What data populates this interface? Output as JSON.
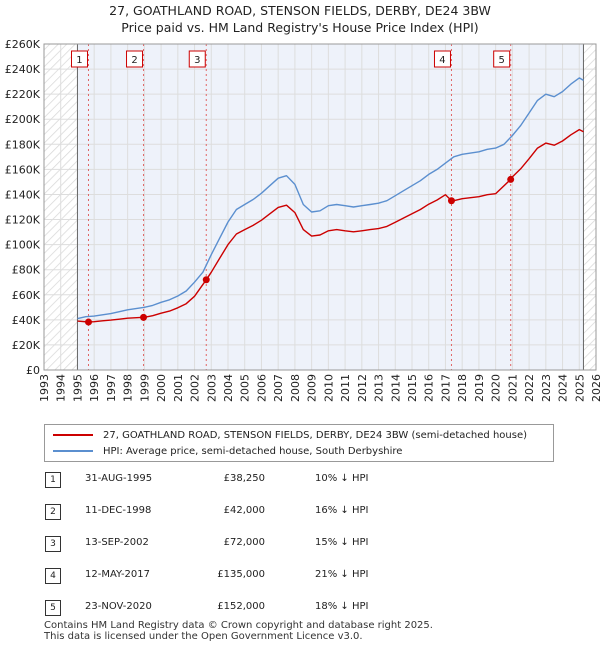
{
  "title": {
    "line1": "27, GOATHLAND ROAD, STENSON FIELDS, DERBY, DE24 3BW",
    "line2": "Price paid vs. HM Land Registry's House Price Index (HPI)"
  },
  "legend": {
    "red": "27, GOATHLAND ROAD, STENSON FIELDS, DERBY, DE24 3BW (semi-detached house)",
    "blue": "HPI: Average price, semi-detached house, South Derbyshire"
  },
  "colors": {
    "red": "#cc0000",
    "blue": "#5b8fcf",
    "grid": "#dddddd",
    "bg": "#eef2fa"
  },
  "sales": [
    {
      "num": "1",
      "date": "31-AUG-1995",
      "price": "£38,250",
      "hpi": "10% ↓ HPI"
    },
    {
      "num": "2",
      "date": "11-DEC-1998",
      "price": "£42,000",
      "hpi": "16% ↓ HPI"
    },
    {
      "num": "3",
      "date": "13-SEP-2002",
      "price": "£72,000",
      "hpi": "15% ↓ HPI"
    },
    {
      "num": "4",
      "date": "12-MAY-2017",
      "price": "£135,000",
      "hpi": "21% ↓ HPI"
    },
    {
      "num": "5",
      "date": "23-NOV-2020",
      "price": "£152,000",
      "hpi": "18% ↓ HPI"
    }
  ],
  "footer": {
    "line1": "Contains HM Land Registry data © Crown copyright and database right 2025.",
    "line2": "This data is licensed under the Open Government Licence v3.0."
  },
  "chart_data": {
    "type": "line",
    "xlim": [
      1993,
      2026
    ],
    "ylim": [
      0,
      260000
    ],
    "x_ticks": [
      1993,
      1994,
      1995,
      1996,
      1997,
      1998,
      1999,
      2000,
      2001,
      2002,
      2003,
      2004,
      2005,
      2006,
      2007,
      2008,
      2009,
      2010,
      2011,
      2012,
      2013,
      2014,
      2015,
      2016,
      2017,
      2018,
      2019,
      2020,
      2021,
      2022,
      2023,
      2024,
      2025,
      2026
    ],
    "y_ticks": [
      0,
      20000,
      40000,
      60000,
      80000,
      100000,
      120000,
      140000,
      160000,
      180000,
      200000,
      220000,
      240000,
      260000
    ],
    "y_tick_labels": [
      "£0",
      "£20K",
      "£40K",
      "£60K",
      "£80K",
      "£100K",
      "£120K",
      "£140K",
      "£160K",
      "£180K",
      "£200K",
      "£220K",
      "£240K",
      "£260K"
    ],
    "data_start": 1995.0,
    "data_end": 2025.25,
    "markers": [
      {
        "label": "1",
        "x": 1995.66,
        "y": 38250
      },
      {
        "label": "2",
        "x": 1998.95,
        "y": 42000
      },
      {
        "label": "3",
        "x": 2002.7,
        "y": 72000
      },
      {
        "label": "4",
        "x": 2017.36,
        "y": 135000
      },
      {
        "label": "5",
        "x": 2020.9,
        "y": 152000
      }
    ],
    "series": [
      {
        "name": "HPI: Average price, semi-detached house, South Derbyshire",
        "color": "#5b8fcf",
        "points": [
          [
            1995.0,
            41000
          ],
          [
            1995.5,
            42500
          ],
          [
            1996.0,
            43000
          ],
          [
            1996.5,
            44000
          ],
          [
            1997.0,
            45000
          ],
          [
            1997.5,
            46500
          ],
          [
            1998.0,
            48000
          ],
          [
            1998.5,
            49000
          ],
          [
            1999.0,
            50000
          ],
          [
            1999.5,
            51500
          ],
          [
            2000.0,
            54000
          ],
          [
            2000.5,
            56000
          ],
          [
            2001.0,
            59000
          ],
          [
            2001.5,
            63000
          ],
          [
            2002.0,
            70000
          ],
          [
            2002.5,
            78000
          ],
          [
            2003.0,
            92000
          ],
          [
            2003.5,
            105000
          ],
          [
            2004.0,
            118000
          ],
          [
            2004.5,
            128000
          ],
          [
            2005.0,
            132000
          ],
          [
            2005.5,
            136000
          ],
          [
            2006.0,
            141000
          ],
          [
            2006.5,
            147000
          ],
          [
            2007.0,
            153000
          ],
          [
            2007.5,
            155000
          ],
          [
            2008.0,
            148000
          ],
          [
            2008.5,
            132000
          ],
          [
            2009.0,
            126000
          ],
          [
            2009.5,
            127000
          ],
          [
            2010.0,
            131000
          ],
          [
            2010.5,
            132000
          ],
          [
            2011.0,
            131000
          ],
          [
            2011.5,
            130000
          ],
          [
            2012.0,
            131000
          ],
          [
            2012.5,
            132000
          ],
          [
            2013.0,
            133000
          ],
          [
            2013.5,
            135000
          ],
          [
            2014.0,
            139000
          ],
          [
            2014.5,
            143000
          ],
          [
            2015.0,
            147000
          ],
          [
            2015.5,
            151000
          ],
          [
            2016.0,
            156000
          ],
          [
            2016.5,
            160000
          ],
          [
            2017.0,
            165000
          ],
          [
            2017.5,
            170000
          ],
          [
            2018.0,
            172000
          ],
          [
            2018.5,
            173000
          ],
          [
            2019.0,
            174000
          ],
          [
            2019.5,
            176000
          ],
          [
            2020.0,
            177000
          ],
          [
            2020.5,
            180000
          ],
          [
            2021.0,
            187000
          ],
          [
            2021.5,
            195000
          ],
          [
            2022.0,
            205000
          ],
          [
            2022.5,
            215000
          ],
          [
            2023.0,
            220000
          ],
          [
            2023.5,
            218000
          ],
          [
            2024.0,
            222000
          ],
          [
            2024.5,
            228000
          ],
          [
            2025.0,
            233000
          ],
          [
            2025.25,
            231000
          ]
        ]
      },
      {
        "name": "27, GOATHLAND ROAD, STENSON FIELDS, DERBY, DE24 3BW (semi-detached house)",
        "color": "#cc0000",
        "points": [
          [
            1995.0,
            39000
          ],
          [
            1995.66,
            38250
          ],
          [
            1996.0,
            38500
          ],
          [
            1996.5,
            39200
          ],
          [
            1997.0,
            39800
          ],
          [
            1997.5,
            40500
          ],
          [
            1998.0,
            41300
          ],
          [
            1998.95,
            42000
          ],
          [
            1999.0,
            42000
          ],
          [
            1999.5,
            43300
          ],
          [
            2000.0,
            45300
          ],
          [
            2000.5,
            47000
          ],
          [
            2001.0,
            49600
          ],
          [
            2001.5,
            52900
          ],
          [
            2002.0,
            58800
          ],
          [
            2002.7,
            72000
          ],
          [
            2003.0,
            78000
          ],
          [
            2003.5,
            89000
          ],
          [
            2004.0,
            100000
          ],
          [
            2004.5,
            108500
          ],
          [
            2005.0,
            112000
          ],
          [
            2005.5,
            115300
          ],
          [
            2006.0,
            119500
          ],
          [
            2006.5,
            124600
          ],
          [
            2007.0,
            129700
          ],
          [
            2007.5,
            131400
          ],
          [
            2008.0,
            125500
          ],
          [
            2008.5,
            112000
          ],
          [
            2009.0,
            106800
          ],
          [
            2009.5,
            107700
          ],
          [
            2010.0,
            111000
          ],
          [
            2010.5,
            112000
          ],
          [
            2011.0,
            111000
          ],
          [
            2011.5,
            110200
          ],
          [
            2012.0,
            111000
          ],
          [
            2012.5,
            112000
          ],
          [
            2013.0,
            112800
          ],
          [
            2013.5,
            114500
          ],
          [
            2014.0,
            117800
          ],
          [
            2014.5,
            121200
          ],
          [
            2015.0,
            124600
          ],
          [
            2015.5,
            128000
          ],
          [
            2016.0,
            132200
          ],
          [
            2016.5,
            135600
          ],
          [
            2017.0,
            139800
          ],
          [
            2017.36,
            135000
          ],
          [
            2017.5,
            135000
          ],
          [
            2018.0,
            136600
          ],
          [
            2018.5,
            137400
          ],
          [
            2019.0,
            138200
          ],
          [
            2019.5,
            139800
          ],
          [
            2020.0,
            140600
          ],
          [
            2020.9,
            152000
          ],
          [
            2021.0,
            154000
          ],
          [
            2021.5,
            160500
          ],
          [
            2022.0,
            168500
          ],
          [
            2022.5,
            177000
          ],
          [
            2023.0,
            181000
          ],
          [
            2023.5,
            179300
          ],
          [
            2024.0,
            182600
          ],
          [
            2024.5,
            187600
          ],
          [
            2025.0,
            191700
          ],
          [
            2025.25,
            190000
          ]
        ]
      }
    ]
  }
}
